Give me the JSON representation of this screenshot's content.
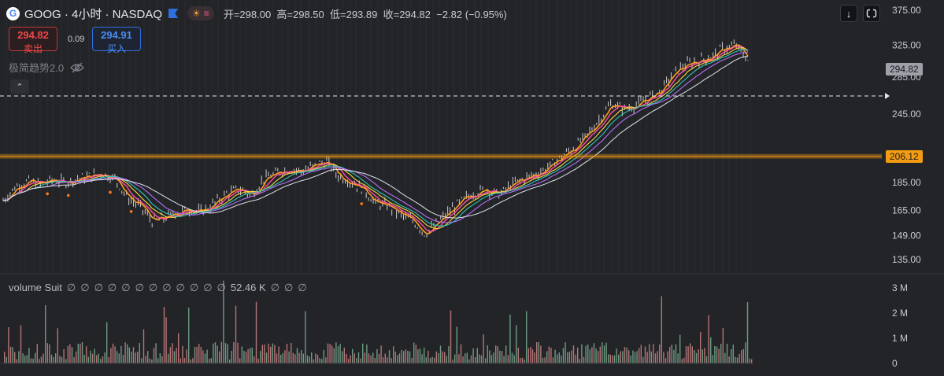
{
  "header": {
    "logo_letter": "G",
    "symbol": "GOOG · 4小时 · NASDAQ",
    "session_icons": [
      "sun-icon",
      "menu-icon"
    ],
    "ohlc": [
      {
        "label": "开=",
        "value": "298.00"
      },
      {
        "label": "高=",
        "value": "298.50"
      },
      {
        "label": "低=",
        "value": "293.89"
      },
      {
        "label": "收=",
        "value": "294.82"
      }
    ],
    "change": "−2.82 (−0.95%)"
  },
  "trade": {
    "sell_price": "294.82",
    "sell_label": "卖出",
    "spread": "0.09",
    "buy_price": "294.91",
    "buy_label": "买入"
  },
  "indicator": {
    "name": "极简趋势2.0",
    "icon": "eye-off-icon"
  },
  "collapse_icon": "chevron-up-icon",
  "toolbar": {
    "scroll_icon": "arrow-down-icon",
    "reset_icon": "reset-icon"
  },
  "tags": {
    "last_price": "294.82",
    "level": "206.12"
  },
  "volume_label": {
    "name": "volume Suit",
    "symbols_before": [
      "∅",
      "∅",
      "∅",
      "∅",
      "∅",
      "∅",
      "∅",
      "∅",
      "∅",
      "∅",
      "∅",
      "∅"
    ],
    "value": "52.46 K",
    "symbols_after": [
      "∅",
      "∅",
      "∅"
    ]
  },
  "colors": {
    "background": "#232428",
    "up": "#26a69a",
    "down": "#ef5350",
    "level_line": "#f39c12",
    "candle": "#e8e8ea"
  },
  "chart_data": [
    {
      "type": "line",
      "title": "",
      "x": [
        0,
        4,
        8,
        12,
        16,
        20,
        24,
        28,
        32,
        36,
        40,
        44,
        48,
        52,
        56,
        60,
        64,
        68,
        72,
        76,
        80,
        84,
        88,
        92,
        96,
        100,
        104,
        108,
        112,
        116,
        120,
        124,
        128,
        132,
        136,
        140,
        144,
        148,
        152,
        156,
        160,
        164,
        168,
        172,
        176,
        180,
        184,
        188,
        192,
        196,
        200,
        204,
        208,
        212,
        216,
        220,
        224,
        228,
        232,
        236,
        240
      ],
      "series": [
        {
          "values": [
            172,
            182,
            186,
            184,
            187,
            185,
            188,
            190,
            192,
            188,
            174,
            168,
            158,
            160,
            164,
            166,
            164,
            170,
            177,
            180,
            176,
            188,
            192,
            196,
            194,
            198,
            202,
            190,
            186,
            180,
            170,
            168,
            162,
            158,
            150,
            157,
            165,
            172,
            178,
            180,
            176,
            184,
            188,
            192,
            198,
            206,
            214,
            224,
            240,
            256,
            250,
            254,
            262,
            270,
            290,
            300,
            305,
            310,
            320,
            325,
            306
          ]
        }
      ],
      "reference_line": 206.12,
      "last_price": 294.82,
      "yticks": [
        375,
        325,
        285,
        245,
        185,
        165,
        149,
        135
      ],
      "y_axis": "log",
      "grid": "vertical lines"
    },
    {
      "type": "bar",
      "title": "",
      "yticks": [
        "3 M",
        "2 M",
        "1 M",
        "0"
      ],
      "ylim": [
        0,
        3500000
      ],
      "typical_volume": 500000,
      "max_volume": 3300000
    }
  ]
}
